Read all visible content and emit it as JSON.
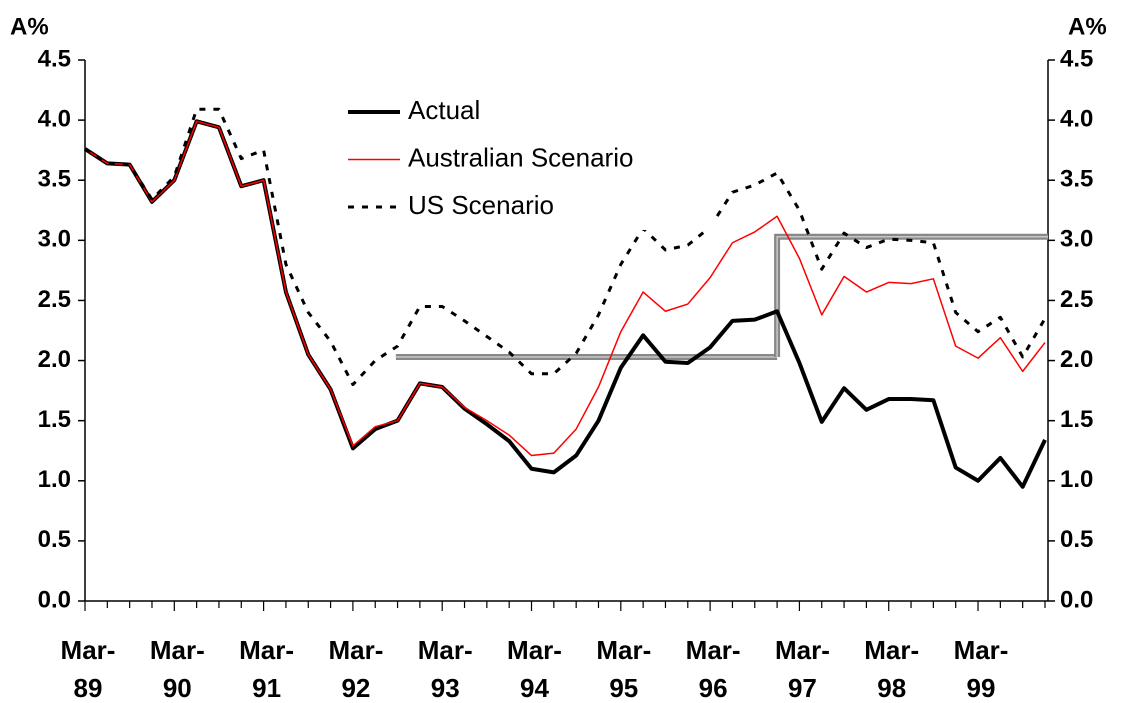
{
  "chart_data": {
    "type": "line",
    "y_axis_label": "A%",
    "y2_axis_label": "A%",
    "categories": [
      "Mar-89",
      null,
      null,
      null,
      "Mar-90",
      null,
      null,
      null,
      "Mar-91",
      null,
      null,
      null,
      "Mar-92",
      null,
      null,
      null,
      "Mar-93",
      null,
      null,
      null,
      "Mar-94",
      null,
      null,
      null,
      "Mar-95",
      null,
      null,
      null,
      "Mar-96",
      null,
      null,
      null,
      "Mar-97",
      null,
      null,
      null,
      "Mar-98",
      null,
      null,
      null,
      "Mar-99",
      null,
      null,
      null
    ],
    "series": [
      {
        "name": "Actual",
        "color": "#000000",
        "style": "solid",
        "width": 4,
        "values": [
          3.76,
          3.64,
          3.63,
          3.32,
          3.5,
          3.99,
          3.94,
          3.45,
          3.5,
          2.57,
          2.05,
          1.76,
          1.27,
          1.43,
          1.5,
          1.81,
          1.78,
          1.6,
          1.47,
          1.33,
          1.1,
          1.07,
          1.21,
          1.5,
          1.94,
          2.21,
          1.99,
          1.98,
          2.11,
          2.33,
          2.34,
          2.41,
          1.98,
          1.49,
          1.77,
          1.59,
          1.68,
          1.68,
          1.67,
          1.11,
          1.0,
          1.19,
          0.95,
          1.34
        ]
      },
      {
        "name": "Australian Scenario",
        "color": "#ff0000",
        "style": "solid",
        "width": 1.5,
        "values": [
          3.76,
          3.64,
          3.63,
          3.32,
          3.5,
          3.99,
          3.94,
          3.45,
          3.5,
          2.57,
          2.05,
          1.76,
          1.29,
          1.45,
          1.5,
          1.81,
          1.78,
          1.61,
          1.5,
          1.38,
          1.21,
          1.23,
          1.43,
          1.78,
          2.24,
          2.57,
          2.41,
          2.47,
          2.69,
          2.98,
          3.07,
          3.2,
          2.85,
          2.38,
          2.7,
          2.57,
          2.65,
          2.64,
          2.68,
          2.12,
          2.02,
          2.19,
          1.91,
          2.15
        ]
      },
      {
        "name": "US Scenario",
        "color": "#000000",
        "style": "dashed",
        "width": 3,
        "values": [
          3.76,
          3.64,
          3.63,
          3.34,
          3.53,
          4.09,
          4.09,
          3.68,
          3.75,
          2.8,
          2.4,
          2.16,
          1.8,
          2.0,
          2.12,
          2.45,
          2.45,
          2.33,
          2.2,
          2.07,
          1.89,
          1.89,
          2.06,
          2.38,
          2.8,
          3.1,
          2.92,
          2.96,
          3.11,
          3.4,
          3.46,
          3.56,
          3.25,
          2.76,
          3.06,
          2.94,
          3.01,
          3.0,
          2.98,
          2.4,
          2.24,
          2.36,
          2.03,
          2.35
        ]
      }
    ],
    "reference_line": {
      "color": "#888888",
      "segments": [
        {
          "start": 15,
          "end": 31,
          "value": 2.03
        },
        {
          "start": 31,
          "end": 43,
          "value": 3.03
        }
      ]
    },
    "ylim": [
      0,
      4.5
    ],
    "yticks": [
      {
        "value": 0,
        "label": "0.0"
      },
      0.5,
      {
        "value": 1,
        "label": "1.0"
      },
      1.5,
      {
        "value": 2,
        "label": "2.0"
      },
      2.5,
      {
        "value": 3,
        "label": "3.0"
      },
      3.5,
      {
        "value": 4,
        "label": "4.0"
      },
      4.5
    ],
    "y2lim": [
      0,
      4.5
    ],
    "y2ticks": [
      {
        "value": 0,
        "label": "0.0"
      },
      0.5,
      {
        "value": 1,
        "label": "1.0"
      },
      1.5,
      {
        "value": 2,
        "label": "2.0"
      },
      2.5,
      {
        "value": 3,
        "label": "3.0"
      },
      3.5,
      {
        "value": 4,
        "label": "4.0"
      },
      4.5
    ],
    "grid": false,
    "legend": "top"
  }
}
